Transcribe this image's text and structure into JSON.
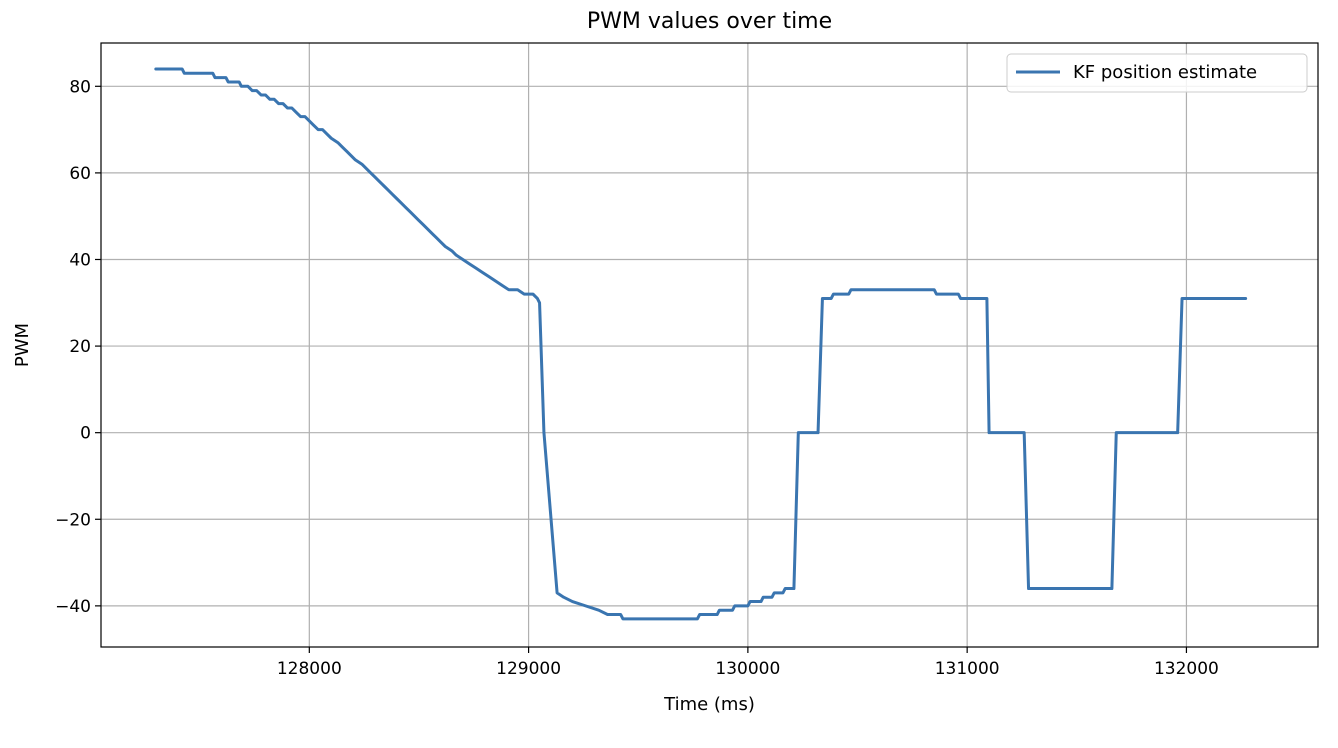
{
  "chart_data": {
    "type": "line",
    "title": "PWM values over time",
    "xlabel": "Time (ms)",
    "ylabel": "PWM",
    "xlim": [
      127050,
      132600
    ],
    "ylim": [
      -49.5,
      90
    ],
    "xticks": [
      128000,
      129000,
      130000,
      131000,
      132000
    ],
    "yticks": [
      -40,
      -20,
      0,
      20,
      40,
      60,
      80
    ],
    "grid": true,
    "legend": {
      "position": "top-right",
      "entries": [
        "KF position estimate"
      ]
    },
    "series": [
      {
        "name": "KF position estimate",
        "color": "#3a75b0",
        "points": [
          [
            127300,
            84
          ],
          [
            127420,
            84
          ],
          [
            127430,
            83
          ],
          [
            127460,
            83
          ],
          [
            127470,
            83
          ],
          [
            127500,
            83
          ],
          [
            127510,
            83
          ],
          [
            127560,
            83
          ],
          [
            127570,
            82
          ],
          [
            127620,
            82
          ],
          [
            127630,
            81
          ],
          [
            127680,
            81
          ],
          [
            127690,
            80
          ],
          [
            127720,
            80
          ],
          [
            127740,
            79
          ],
          [
            127760,
            79
          ],
          [
            127780,
            78
          ],
          [
            127800,
            78
          ],
          [
            127820,
            77
          ],
          [
            127840,
            77
          ],
          [
            127860,
            76
          ],
          [
            127880,
            76
          ],
          [
            127900,
            75
          ],
          [
            127920,
            75
          ],
          [
            127940,
            74
          ],
          [
            127960,
            73
          ],
          [
            127980,
            73
          ],
          [
            128000,
            72
          ],
          [
            128020,
            71
          ],
          [
            128040,
            70
          ],
          [
            128060,
            70
          ],
          [
            128080,
            69
          ],
          [
            128100,
            68
          ],
          [
            128130,
            67
          ],
          [
            128150,
            66
          ],
          [
            128170,
            65
          ],
          [
            128190,
            64
          ],
          [
            128210,
            63
          ],
          [
            128240,
            62
          ],
          [
            128260,
            61
          ],
          [
            128280,
            60
          ],
          [
            128300,
            59
          ],
          [
            128320,
            58
          ],
          [
            128340,
            57
          ],
          [
            128360,
            56
          ],
          [
            128380,
            55
          ],
          [
            128400,
            54
          ],
          [
            128420,
            53
          ],
          [
            128440,
            52
          ],
          [
            128460,
            51
          ],
          [
            128480,
            50
          ],
          [
            128500,
            49
          ],
          [
            128520,
            48
          ],
          [
            128540,
            47
          ],
          [
            128560,
            46
          ],
          [
            128580,
            45
          ],
          [
            128600,
            44
          ],
          [
            128620,
            43
          ],
          [
            128650,
            42
          ],
          [
            128670,
            41
          ],
          [
            128700,
            40
          ],
          [
            128730,
            39
          ],
          [
            128760,
            38
          ],
          [
            128790,
            37
          ],
          [
            128820,
            36
          ],
          [
            128850,
            35
          ],
          [
            128880,
            34
          ],
          [
            128910,
            33
          ],
          [
            128950,
            33
          ],
          [
            128980,
            32
          ],
          [
            129020,
            32
          ],
          [
            129040,
            31
          ],
          [
            129050,
            30
          ],
          [
            129070,
            0
          ],
          [
            129130,
            -37
          ],
          [
            129160,
            -38
          ],
          [
            129200,
            -39
          ],
          [
            129260,
            -40
          ],
          [
            129320,
            -41
          ],
          [
            129360,
            -42
          ],
          [
            129420,
            -42
          ],
          [
            129430,
            -43
          ],
          [
            129770,
            -43
          ],
          [
            129780,
            -42
          ],
          [
            129860,
            -42
          ],
          [
            129870,
            -41
          ],
          [
            129930,
            -41
          ],
          [
            129940,
            -40
          ],
          [
            130000,
            -40
          ],
          [
            130010,
            -39
          ],
          [
            130060,
            -39
          ],
          [
            130070,
            -38
          ],
          [
            130110,
            -38
          ],
          [
            130120,
            -37
          ],
          [
            130160,
            -37
          ],
          [
            130170,
            -36
          ],
          [
            130210,
            -36
          ],
          [
            130230,
            0
          ],
          [
            130320,
            0
          ],
          [
            130340,
            31
          ],
          [
            130380,
            31
          ],
          [
            130390,
            32
          ],
          [
            130460,
            32
          ],
          [
            130470,
            33
          ],
          [
            130850,
            33
          ],
          [
            130860,
            32
          ],
          [
            130960,
            32
          ],
          [
            130970,
            31
          ],
          [
            131090,
            31
          ],
          [
            131100,
            0
          ],
          [
            131260,
            0
          ],
          [
            131280,
            -36
          ],
          [
            131660,
            -36
          ],
          [
            131680,
            0
          ],
          [
            131960,
            0
          ],
          [
            131980,
            31
          ],
          [
            132270,
            31
          ]
        ]
      }
    ]
  }
}
